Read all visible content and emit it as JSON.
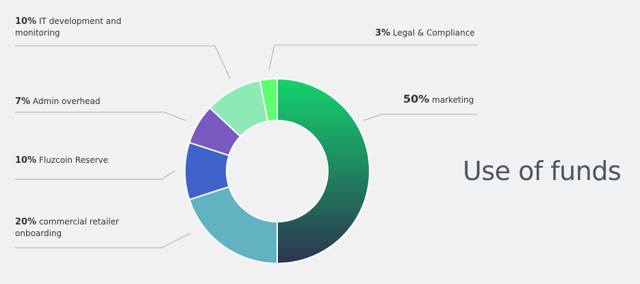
{
  "title": "Use of funds",
  "chart_data": {
    "type": "pie",
    "title": "Use of funds",
    "slices": [
      {
        "pct_label": "50%",
        "label": "marketing",
        "value": 50,
        "color_start": "#15d36d",
        "color_end": "#2a3550"
      },
      {
        "pct_label": "20%",
        "label_line1": "commercial retailer",
        "label_line2": "onboarding",
        "value": 20,
        "color": "#61b3c1"
      },
      {
        "pct_label": "10%",
        "label": "Fluzcoin Reserve",
        "value": 10,
        "color": "#4063c9"
      },
      {
        "pct_label": "7%",
        "label": "Admin overhead",
        "value": 7,
        "color": "#7a59c0"
      },
      {
        "pct_label": "10%",
        "label_line1": "IT development and",
        "label_line2": "monitoring",
        "value": 10,
        "color": "#8eeab5"
      },
      {
        "pct_label": "3%",
        "label": "Legal & Compliance",
        "value": 3,
        "color": "#5cff6f"
      }
    ]
  }
}
